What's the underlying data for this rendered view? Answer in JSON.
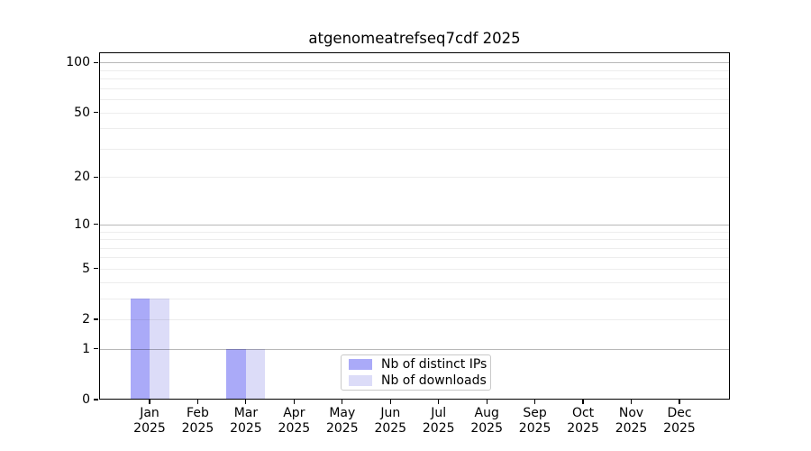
{
  "chart_data": {
    "type": "bar",
    "title": "atgenomeatrefseq7cdf 2025",
    "categories": [
      "Jan",
      "Feb",
      "Mar",
      "Apr",
      "May",
      "Jun",
      "Jul",
      "Aug",
      "Sep",
      "Oct",
      "Nov",
      "Dec"
    ],
    "x_year": "2025",
    "series": [
      {
        "name": "Nb of distinct IPs",
        "color": "#aaaaf8",
        "values": [
          3,
          0,
          1,
          0,
          0,
          0,
          0,
          0,
          0,
          0,
          0,
          0
        ]
      },
      {
        "name": "Nb of downloads",
        "color": "#dcdcf8",
        "values": [
          3,
          0,
          1,
          0,
          0,
          0,
          0,
          0,
          0,
          0,
          0,
          0
        ]
      }
    ],
    "yticks": [
      0,
      1,
      2,
      5,
      10,
      20,
      50,
      100
    ],
    "grid_major": [
      1,
      10,
      100
    ],
    "grid_minor": [
      2,
      3,
      4,
      5,
      6,
      7,
      8,
      9,
      20,
      30,
      40,
      50,
      60,
      70,
      80,
      90
    ],
    "ylim": [
      0,
      115
    ],
    "scale": "log10(1+y) with 0 at baseline",
    "xlabel": "",
    "ylabel": "",
    "grid": true,
    "legend_position": "lower center inside plot"
  },
  "colors": {
    "background": "#ffffff",
    "axis": "#000000",
    "text": "#000000",
    "grid_minor": "rgba(0,0,0,0.07)",
    "grid_major": "rgba(0,0,0,0.28)",
    "legend_border": "#c9c9c9"
  }
}
